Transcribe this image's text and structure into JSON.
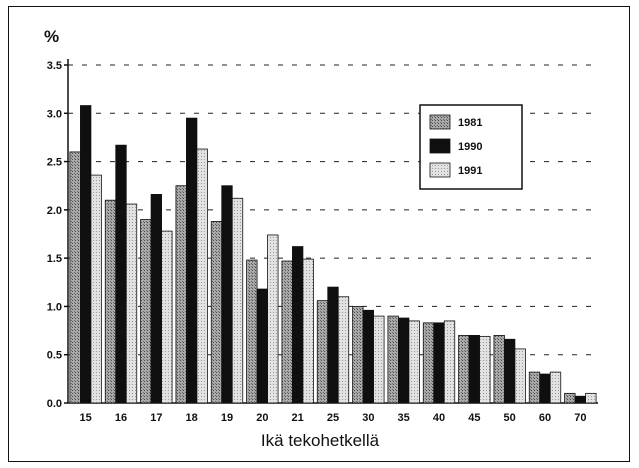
{
  "chart_data": {
    "type": "bar",
    "title": "",
    "ylabel": "%",
    "xlabel": "Ikä tekohetkellä",
    "ylim": [
      0,
      3.5
    ],
    "yticks": [
      "0.0",
      "0.5",
      "1.0",
      "1.5",
      "2.0",
      "2.5",
      "3.0",
      "3.5"
    ],
    "grid": "horizontal-dashed",
    "legend_position": "top-right",
    "categories": [
      "15",
      "16",
      "17",
      "18",
      "19",
      "20",
      "21",
      "25",
      "30",
      "35",
      "40",
      "45",
      "50",
      "60",
      "70"
    ],
    "series": [
      {
        "name": "1981",
        "color": "#8a8a8a",
        "values": [
          2.6,
          2.1,
          1.9,
          2.25,
          1.88,
          1.48,
          1.47,
          1.06,
          1.0,
          0.9,
          0.83,
          0.7,
          0.7,
          0.32,
          0.1
        ]
      },
      {
        "name": "1990",
        "color": "#111111",
        "values": [
          3.08,
          2.67,
          2.16,
          2.95,
          2.25,
          1.18,
          1.62,
          1.2,
          0.96,
          0.88,
          0.83,
          0.7,
          0.66,
          0.3,
          0.07
        ]
      },
      {
        "name": "1991",
        "color": "#d4d4d4",
        "values": [
          2.36,
          2.06,
          1.78,
          2.63,
          2.12,
          1.74,
          1.49,
          1.1,
          0.9,
          0.85,
          0.85,
          0.69,
          0.56,
          0.32,
          0.1
        ]
      }
    ]
  }
}
